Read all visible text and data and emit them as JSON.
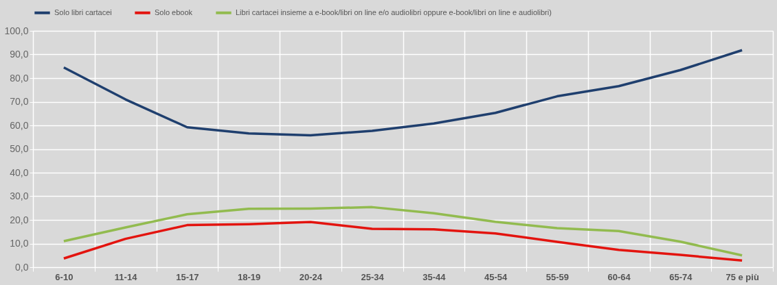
{
  "chart_data": {
    "type": "line",
    "categories": [
      "6-10",
      "11-14",
      "15-17",
      "18-19",
      "20-24",
      "25-34",
      "35-44",
      "45-54",
      "55-59",
      "60-64",
      "65-74",
      "75 e più"
    ],
    "series": [
      {
        "name": "Solo libri cartacei",
        "color": "#1f3f6e",
        "values": [
          84.5,
          71.0,
          59.2,
          56.6,
          55.8,
          57.7,
          60.8,
          65.3,
          72.3,
          76.6,
          83.4,
          91.8
        ]
      },
      {
        "name": "Solo ebook",
        "color": "#e3140f",
        "values": [
          3.7,
          12.0,
          17.8,
          18.2,
          19.1,
          16.2,
          16.0,
          14.3,
          10.7,
          7.3,
          5.2,
          2.8
        ]
      },
      {
        "name": "Libri cartacei insieme a e-book/libri on line e/o audiolibri oppure e-book/libri on line e audiolibri)",
        "color": "#92bb4f",
        "values": [
          11.0,
          16.8,
          22.4,
          24.7,
          24.8,
          25.4,
          22.8,
          19.2,
          16.5,
          15.3,
          10.8,
          5.0
        ]
      }
    ],
    "ylim": [
      0,
      100
    ],
    "yticks": [
      {
        "value": 0,
        "label": "0,0"
      },
      {
        "value": 10,
        "label": "10,0"
      },
      {
        "value": 20,
        "label": "20,0"
      },
      {
        "value": 30,
        "label": "30,0"
      },
      {
        "value": 40,
        "label": "40,0"
      },
      {
        "value": 50,
        "label": "50,0"
      },
      {
        "value": 60,
        "label": "60,0"
      },
      {
        "value": 70,
        "label": "70,0"
      },
      {
        "value": 80,
        "label": "80,0"
      },
      {
        "value": 90,
        "label": "90,0"
      },
      {
        "value": 100,
        "label": "100,0"
      }
    ],
    "grid": true,
    "legend": "top",
    "marker": "none",
    "line_style": "solid"
  }
}
